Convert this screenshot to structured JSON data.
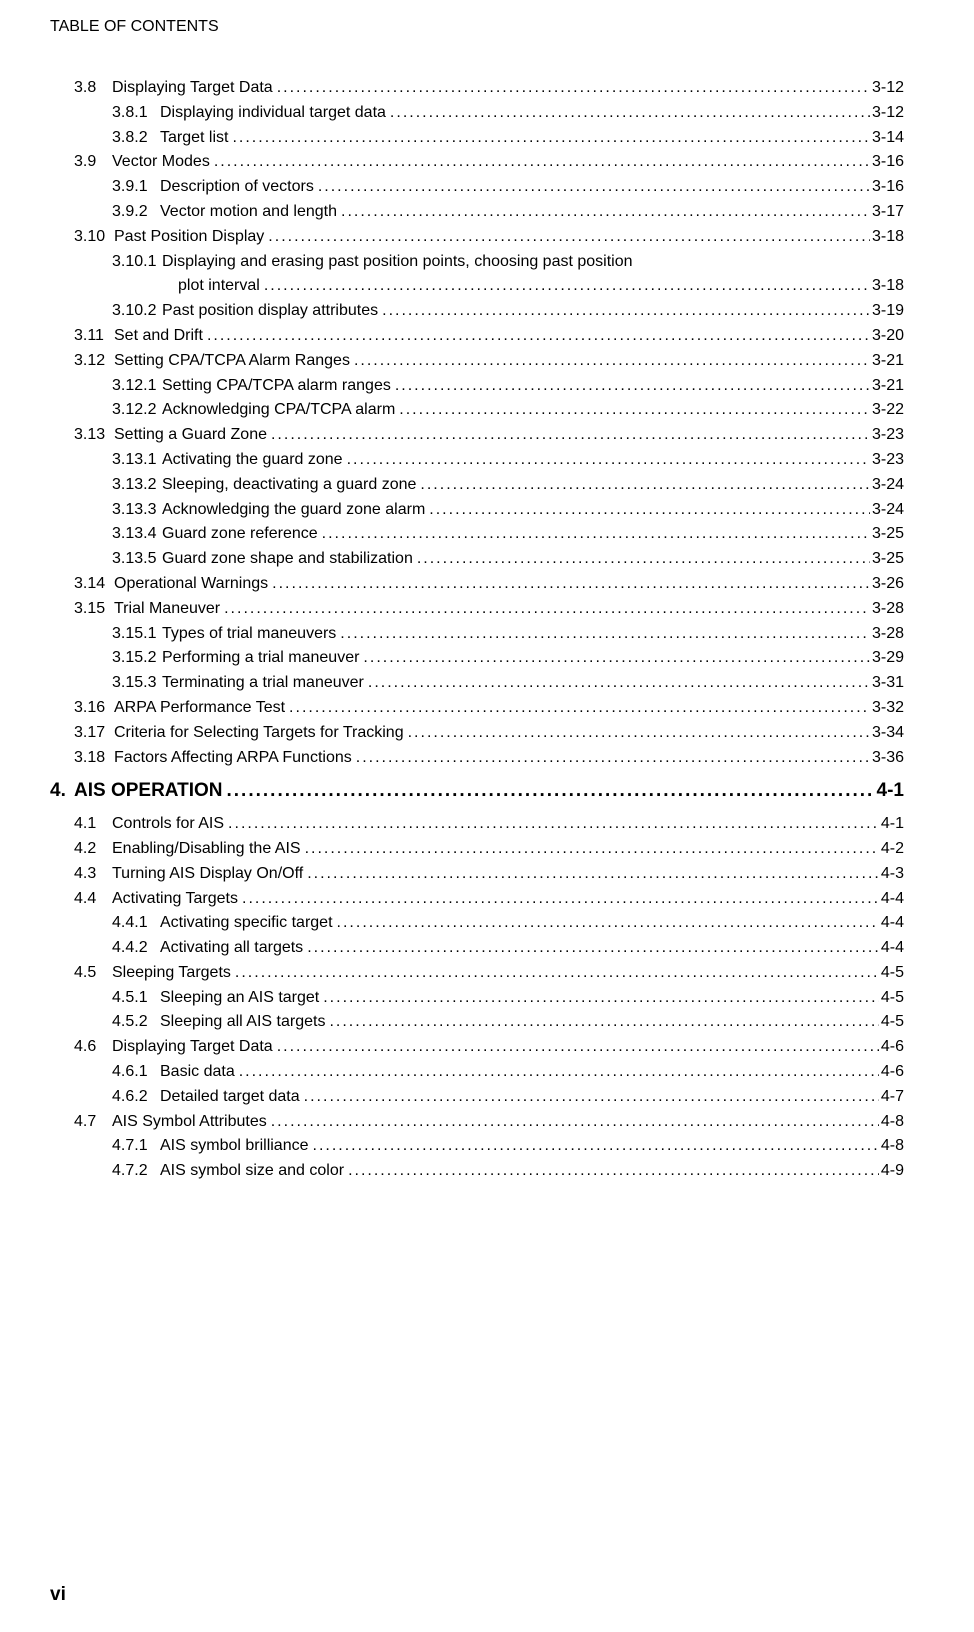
{
  "header": "TABLE OF CONTENTS",
  "footer": "vi",
  "entries": [
    {
      "level": 1,
      "num": "3.8",
      "title": "Displaying Target Data",
      "page": "3-12"
    },
    {
      "level": 2,
      "num": "3.8.1",
      "title": "Displaying individual target data",
      "page": "3-12"
    },
    {
      "level": 2,
      "num": "3.8.2",
      "title": "Target list",
      "page": "3-14"
    },
    {
      "level": 1,
      "num": "3.9",
      "title": "Vector Modes",
      "page": "3-16"
    },
    {
      "level": 2,
      "num": "3.9.1",
      "title": "Description of vectors",
      "page": "3-16"
    },
    {
      "level": 2,
      "num": "3.9.2",
      "title": "Vector motion and length",
      "page": "3-17"
    },
    {
      "level": 1,
      "wide": true,
      "num": "3.10",
      "title": "Past Position Display",
      "page": "3-18"
    },
    {
      "level": 2,
      "wide": true,
      "num": "3.10.1",
      "title": "Displaying and erasing past position points, choosing past position",
      "nopagedots": true
    },
    {
      "level": 3,
      "title": "plot interval",
      "page": "3-18"
    },
    {
      "level": 2,
      "wide": true,
      "num": "3.10.2",
      "title": "Past position display attributes",
      "page": "3-19"
    },
    {
      "level": 1,
      "wide": true,
      "num": "3.11",
      "title": "Set and Drift",
      "page": "3-20"
    },
    {
      "level": 1,
      "wide": true,
      "num": "3.12",
      "title": "Setting CPA/TCPA Alarm Ranges",
      "page": "3-21"
    },
    {
      "level": 2,
      "wide": true,
      "num": "3.12.1",
      "title": "Setting CPA/TCPA alarm ranges",
      "page": "3-21"
    },
    {
      "level": 2,
      "wide": true,
      "num": "3.12.2",
      "title": "Acknowledging CPA/TCPA alarm",
      "page": "3-22"
    },
    {
      "level": 1,
      "wide": true,
      "num": "3.13",
      "title": "Setting a Guard Zone",
      "page": "3-23"
    },
    {
      "level": 2,
      "wide": true,
      "num": "3.13.1",
      "title": "Activating the guard zone",
      "page": "3-23"
    },
    {
      "level": 2,
      "wide": true,
      "num": "3.13.2",
      "title": "Sleeping, deactivating a guard zone",
      "page": "3-24"
    },
    {
      "level": 2,
      "wide": true,
      "num": "3.13.3",
      "title": "Acknowledging the guard zone alarm",
      "page": "3-24"
    },
    {
      "level": 2,
      "wide": true,
      "num": "3.13.4",
      "title": "Guard zone reference",
      "page": "3-25"
    },
    {
      "level": 2,
      "wide": true,
      "num": "3.13.5",
      "title": "Guard zone shape and stabilization",
      "page": "3-25"
    },
    {
      "level": 1,
      "wide": true,
      "num": "3.14",
      "title": "Operational Warnings",
      "page": "3-26"
    },
    {
      "level": 1,
      "wide": true,
      "num": "3.15",
      "title": "Trial Maneuver",
      "page": "3-28"
    },
    {
      "level": 2,
      "wide": true,
      "num": "3.15.1",
      "title": "Types of trial maneuvers",
      "page": "3-28"
    },
    {
      "level": 2,
      "wide": true,
      "num": "3.15.2",
      "title": "Performing a trial maneuver",
      "page": "3-29"
    },
    {
      "level": 2,
      "wide": true,
      "num": "3.15.3",
      "title": "Terminating a trial maneuver",
      "page": "3-31"
    },
    {
      "level": 1,
      "wide": true,
      "num": "3.16",
      "title": "ARPA Performance Test",
      "page": "3-32"
    },
    {
      "level": 1,
      "wide": true,
      "num": "3.17",
      "title": "Criteria for Selecting Targets for Tracking",
      "page": "3-34"
    },
    {
      "level": 1,
      "wide": true,
      "num": "3.18",
      "title": "Factors Affecting ARPA Functions",
      "page": "3-36"
    },
    {
      "level": 0,
      "num": "4.",
      "title": "AIS OPERATION",
      "page": "4-1"
    },
    {
      "level": 1,
      "num": "4.1",
      "title": "Controls for AIS",
      "page": "4-1"
    },
    {
      "level": 1,
      "num": "4.2",
      "title": "Enabling/Disabling the AIS",
      "page": "4-2"
    },
    {
      "level": 1,
      "num": "4.3",
      "title": "Turning AIS Display On/Off",
      "page": "4-3"
    },
    {
      "level": 1,
      "num": "4.4",
      "title": "Activating Targets",
      "page": "4-4"
    },
    {
      "level": 2,
      "num": "4.4.1",
      "title": "Activating specific target",
      "page": "4-4"
    },
    {
      "level": 2,
      "num": "4.4.2",
      "title": "Activating all targets",
      "page": "4-4"
    },
    {
      "level": 1,
      "num": "4.5",
      "title": "Sleeping Targets",
      "page": "4-5"
    },
    {
      "level": 2,
      "num": "4.5.1",
      "title": "Sleeping an AIS target",
      "page": "4-5"
    },
    {
      "level": 2,
      "num": "4.5.2",
      "title": "Sleeping all AIS targets",
      "page": "4-5"
    },
    {
      "level": 1,
      "num": "4.6",
      "title": "Displaying Target Data",
      "page": "4-6"
    },
    {
      "level": 2,
      "num": "4.6.1",
      "title": "Basic data",
      "page": "4-6"
    },
    {
      "level": 2,
      "num": "4.6.2",
      "title": "Detailed target data",
      "page": "4-7"
    },
    {
      "level": 1,
      "num": "4.7",
      "title": "AIS Symbol Attributes",
      "page": "4-8"
    },
    {
      "level": 2,
      "num": "4.7.1",
      "title": "AIS symbol brilliance",
      "page": "4-8"
    },
    {
      "level": 2,
      "num": "4.7.2",
      "title": "AIS symbol size and color",
      "page": "4-9"
    }
  ]
}
